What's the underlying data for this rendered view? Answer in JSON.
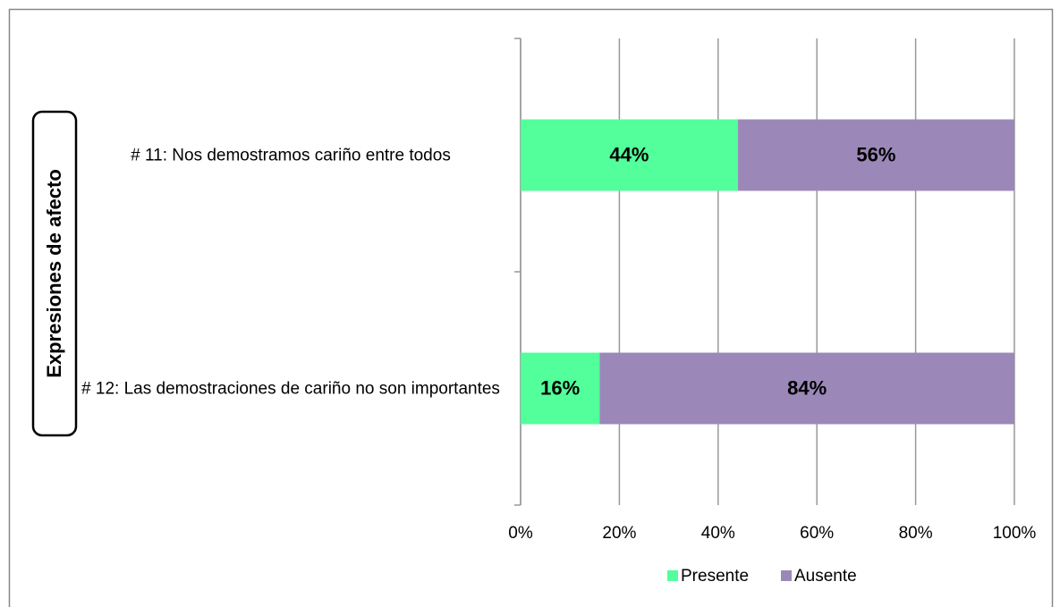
{
  "chart_data": {
    "type": "stacked_bar_horizontal",
    "axis_label": "Expresiones de afecto",
    "categories": [
      "# 11: Nos demostramos cariño entre todos",
      "# 12: Las demostraciones de cariño no son importantes"
    ],
    "series": [
      {
        "name": "Presente",
        "color": "#52ff9a",
        "values": [
          44,
          16
        ],
        "value_labels": [
          "44%",
          "16%"
        ]
      },
      {
        "name": "Ausente",
        "color": "#9b88b8",
        "values": [
          56,
          84
        ],
        "value_labels": [
          "56%",
          "84%"
        ]
      }
    ],
    "xlim": [
      0,
      100
    ],
    "xticks": [
      {
        "value": 0,
        "label": "0%"
      },
      {
        "value": 20,
        "label": "20%"
      },
      {
        "value": 40,
        "label": "40%"
      },
      {
        "value": 60,
        "label": "60%"
      },
      {
        "value": 80,
        "label": "80%"
      },
      {
        "value": 100,
        "label": "100%"
      }
    ],
    "grid": true,
    "legend": "bottom"
  }
}
